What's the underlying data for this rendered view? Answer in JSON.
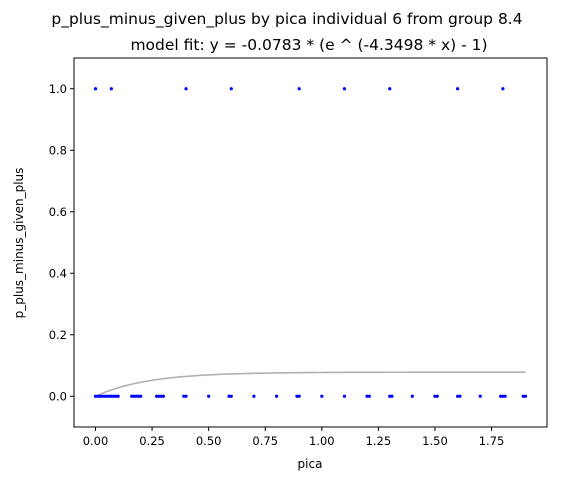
{
  "chart_data": {
    "type": "scatter",
    "title": "p_plus_minus_given_plus by pica individual 6 from group 8.4",
    "subtitle": "model fit: y = -0.0783 * (e ^ (-4.3498 * x) - 1)",
    "xlabel": "pica",
    "ylabel": "p_plus_minus_given_plus",
    "xlim": [
      -0.095,
      1.995
    ],
    "ylim": [
      -0.1,
      1.1
    ],
    "x_ticks": [
      "0.00",
      "0.25",
      "0.50",
      "0.75",
      "1.00",
      "1.25",
      "1.50",
      "1.75"
    ],
    "x_tick_values": [
      0,
      0.25,
      0.5,
      0.75,
      1.0,
      1.25,
      1.5,
      1.75
    ],
    "y_ticks": [
      "0.0",
      "0.2",
      "0.4",
      "0.6",
      "0.8",
      "1.0"
    ],
    "y_tick_values": [
      0,
      0.2,
      0.4,
      0.6,
      0.8,
      1.0
    ],
    "grid": false,
    "colors": {
      "points": "#0000ff",
      "fit_line": "#b0b0b0",
      "axes": "#000000"
    },
    "fit": {
      "a": 0.0783,
      "b": 4.3498,
      "x_range": [
        0,
        1.9
      ]
    },
    "points": [
      {
        "x": 0.0,
        "y": 1
      },
      {
        "x": 0.07,
        "y": 1
      },
      {
        "x": 0.4,
        "y": 1
      },
      {
        "x": 0.6,
        "y": 1
      },
      {
        "x": 0.9,
        "y": 1
      },
      {
        "x": 1.1,
        "y": 1
      },
      {
        "x": 1.3,
        "y": 1
      },
      {
        "x": 1.6,
        "y": 1
      },
      {
        "x": 1.8,
        "y": 1
      },
      {
        "x": 0.0,
        "y": 0
      },
      {
        "x": 0.01,
        "y": 0
      },
      {
        "x": 0.02,
        "y": 0
      },
      {
        "x": 0.03,
        "y": 0
      },
      {
        "x": 0.04,
        "y": 0
      },
      {
        "x": 0.05,
        "y": 0
      },
      {
        "x": 0.06,
        "y": 0
      },
      {
        "x": 0.07,
        "y": 0
      },
      {
        "x": 0.08,
        "y": 0
      },
      {
        "x": 0.09,
        "y": 0
      },
      {
        "x": 0.1,
        "y": 0
      },
      {
        "x": 0.16,
        "y": 0
      },
      {
        "x": 0.17,
        "y": 0
      },
      {
        "x": 0.18,
        "y": 0
      },
      {
        "x": 0.19,
        "y": 0
      },
      {
        "x": 0.2,
        "y": 0
      },
      {
        "x": 0.27,
        "y": 0
      },
      {
        "x": 0.28,
        "y": 0
      },
      {
        "x": 0.29,
        "y": 0
      },
      {
        "x": 0.3,
        "y": 0
      },
      {
        "x": 0.39,
        "y": 0
      },
      {
        "x": 0.4,
        "y": 0
      },
      {
        "x": 0.5,
        "y": 0
      },
      {
        "x": 0.59,
        "y": 0
      },
      {
        "x": 0.6,
        "y": 0
      },
      {
        "x": 0.7,
        "y": 0
      },
      {
        "x": 0.8,
        "y": 0
      },
      {
        "x": 0.89,
        "y": 0
      },
      {
        "x": 0.9,
        "y": 0
      },
      {
        "x": 1.0,
        "y": 0
      },
      {
        "x": 1.1,
        "y": 0
      },
      {
        "x": 1.2,
        "y": 0
      },
      {
        "x": 1.21,
        "y": 0
      },
      {
        "x": 1.3,
        "y": 0
      },
      {
        "x": 1.31,
        "y": 0
      },
      {
        "x": 1.4,
        "y": 0
      },
      {
        "x": 1.5,
        "y": 0
      },
      {
        "x": 1.51,
        "y": 0
      },
      {
        "x": 1.6,
        "y": 0
      },
      {
        "x": 1.61,
        "y": 0
      },
      {
        "x": 1.7,
        "y": 0
      },
      {
        "x": 1.79,
        "y": 0
      },
      {
        "x": 1.8,
        "y": 0
      },
      {
        "x": 1.81,
        "y": 0
      },
      {
        "x": 1.89,
        "y": 0
      },
      {
        "x": 1.9,
        "y": 0
      }
    ]
  }
}
